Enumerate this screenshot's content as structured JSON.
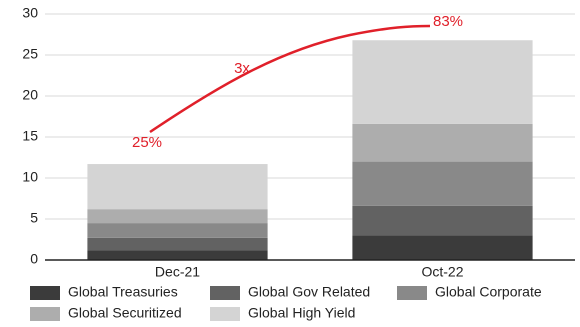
{
  "chart_data": {
    "type": "stacked_bar",
    "categories": [
      "Dec-21",
      "Oct-22"
    ],
    "series": [
      {
        "name": "Global Treasuries",
        "color": "#3b3b3b",
        "values": [
          1.2,
          3.0
        ]
      },
      {
        "name": "Global Gov Related",
        "color": "#626262",
        "values": [
          1.5,
          3.6
        ]
      },
      {
        "name": "Global Corporate",
        "color": "#898989",
        "values": [
          1.8,
          5.4
        ]
      },
      {
        "name": "Global Securitized",
        "color": "#adadad",
        "values": [
          1.7,
          4.6
        ]
      },
      {
        "name": "Global High Yield",
        "color": "#d4d4d4",
        "values": [
          5.5,
          10.2
        ]
      }
    ],
    "annotations": [
      "25%",
      "3x",
      "83%"
    ],
    "annotation_color": "#e0202a",
    "ylim": [
      0,
      30
    ],
    "yticks": [
      0,
      5,
      10,
      15,
      20,
      25,
      30
    ],
    "grid": true
  }
}
